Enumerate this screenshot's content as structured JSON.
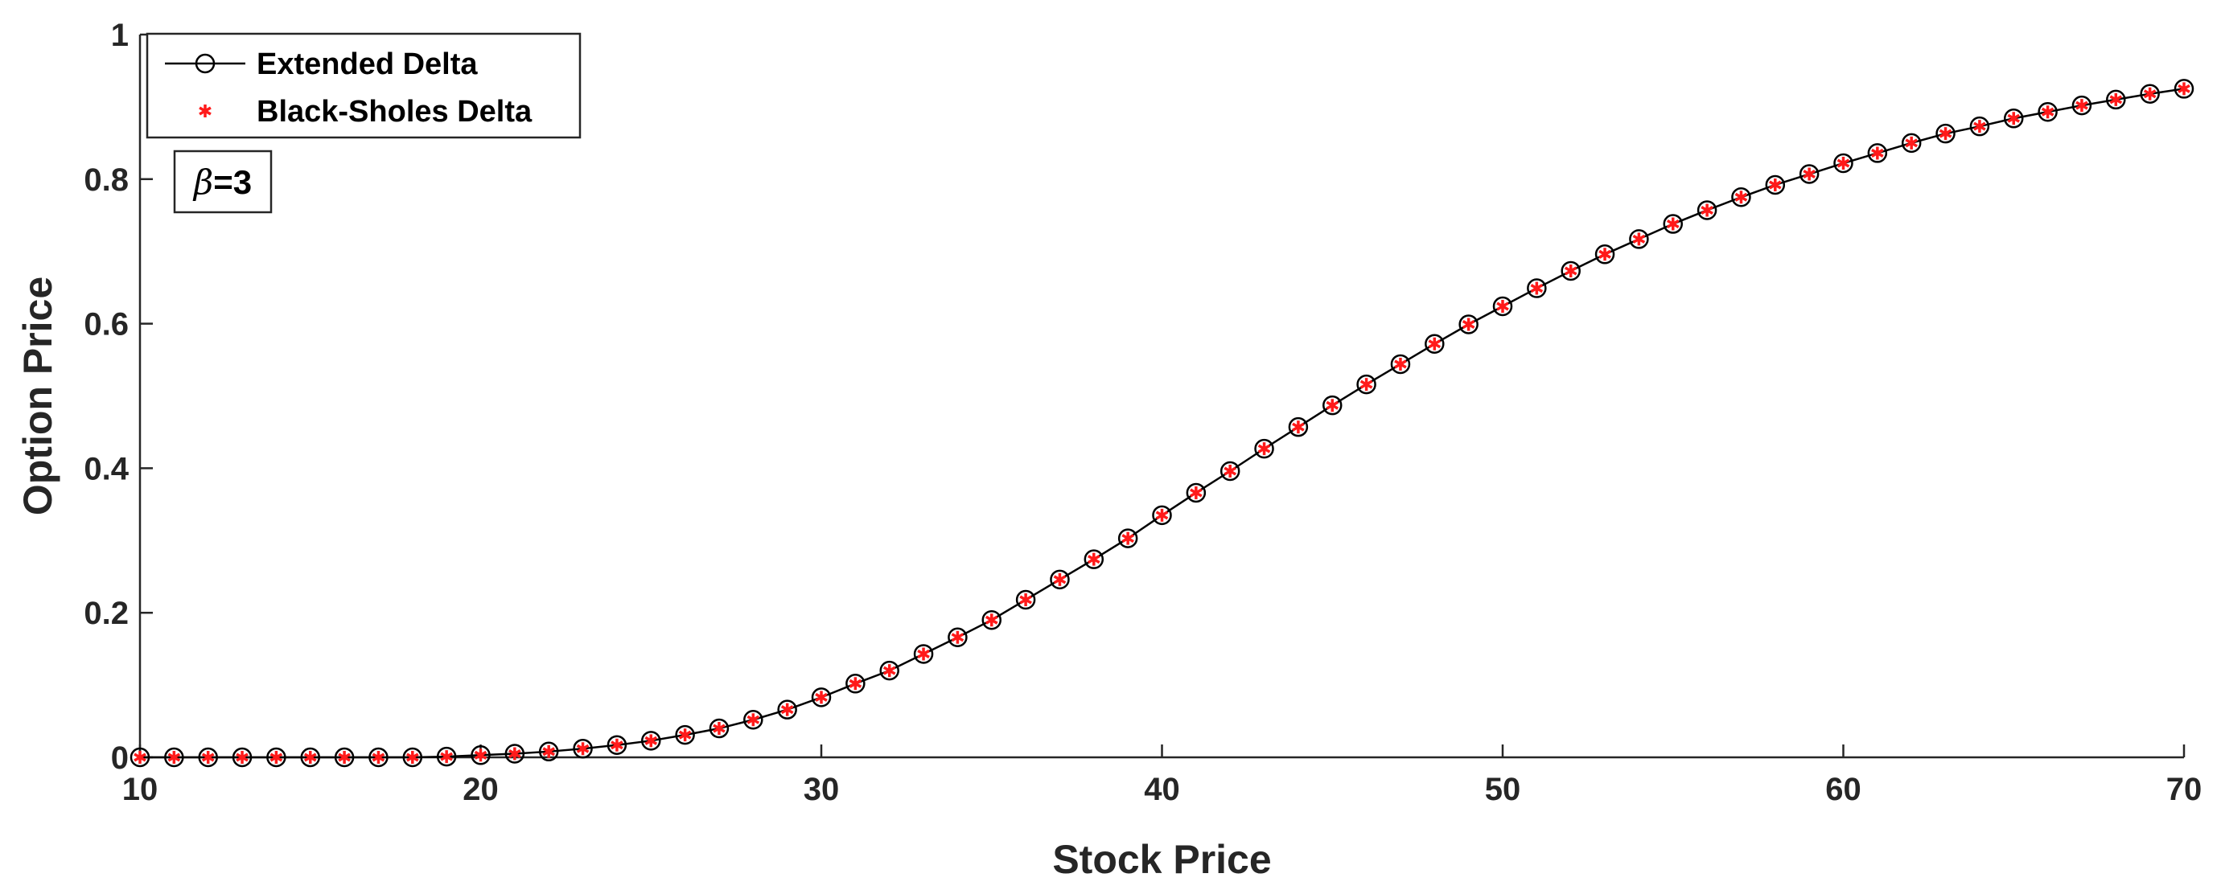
{
  "chart_data": {
    "type": "line",
    "xlabel": "Stock Price",
    "ylabel": "Option Price",
    "xlim": [
      10,
      70
    ],
    "ylim": [
      0,
      1
    ],
    "xticks": [
      10,
      20,
      30,
      40,
      50,
      60,
      70
    ],
    "xtick_labels": [
      "10",
      "20",
      "30",
      "40",
      "50",
      "60",
      "70"
    ],
    "yticks": [
      0,
      0.2,
      0.4,
      0.6,
      0.8,
      1
    ],
    "ytick_labels": [
      "0",
      "0.2",
      "0.4",
      "0.6",
      "0.8",
      "1"
    ],
    "grid": false,
    "legend_position": "top-left",
    "x": [
      10,
      11,
      12,
      13,
      14,
      15,
      16,
      17,
      18,
      19,
      20,
      21,
      22,
      23,
      24,
      25,
      26,
      27,
      28,
      29,
      30,
      31,
      32,
      33,
      34,
      35,
      36,
      37,
      38,
      39,
      40,
      41,
      42,
      43,
      44,
      45,
      46,
      47,
      48,
      49,
      50,
      51,
      52,
      53,
      54,
      55,
      56,
      57,
      58,
      59,
      60,
      61,
      62,
      63,
      64,
      65,
      66,
      67,
      68,
      69,
      70
    ],
    "series": [
      {
        "name": "Extended Delta",
        "style": "line-circle",
        "color": "#000000",
        "values": [
          0,
          0,
          0,
          0,
          0,
          0,
          0,
          0,
          0,
          0.001,
          0.003,
          0.005,
          0.008,
          0.012,
          0.017,
          0.023,
          0.031,
          0.04,
          0.052,
          0.066,
          0.083,
          0.102,
          0.12,
          0.143,
          0.166,
          0.19,
          0.218,
          0.246,
          0.274,
          0.303,
          0.335,
          0.366,
          0.396,
          0.427,
          0.457,
          0.487,
          0.516,
          0.544,
          0.572,
          0.599,
          0.624,
          0.649,
          0.673,
          0.696,
          0.717,
          0.738,
          0.757,
          0.775,
          0.792,
          0.807,
          0.822,
          0.836,
          0.85,
          0.863,
          0.873,
          0.884,
          0.893,
          0.902,
          0.91,
          0.918,
          0.925
        ]
      },
      {
        "name": "Black-Sholes Delta",
        "style": "asterisk",
        "color": "#ff1a1a",
        "values": [
          0,
          0,
          0,
          0,
          0,
          0,
          0,
          0,
          0,
          0.001,
          0.003,
          0.005,
          0.008,
          0.012,
          0.017,
          0.023,
          0.031,
          0.04,
          0.052,
          0.066,
          0.083,
          0.102,
          0.12,
          0.143,
          0.166,
          0.19,
          0.218,
          0.246,
          0.274,
          0.303,
          0.335,
          0.366,
          0.396,
          0.427,
          0.457,
          0.487,
          0.516,
          0.544,
          0.572,
          0.599,
          0.624,
          0.649,
          0.673,
          0.696,
          0.717,
          0.738,
          0.757,
          0.775,
          0.792,
          0.807,
          0.822,
          0.836,
          0.85,
          0.863,
          0.873,
          0.884,
          0.893,
          0.902,
          0.91,
          0.918,
          0.925
        ]
      }
    ],
    "annotation": {
      "greek": "β",
      "text": "=3"
    }
  }
}
